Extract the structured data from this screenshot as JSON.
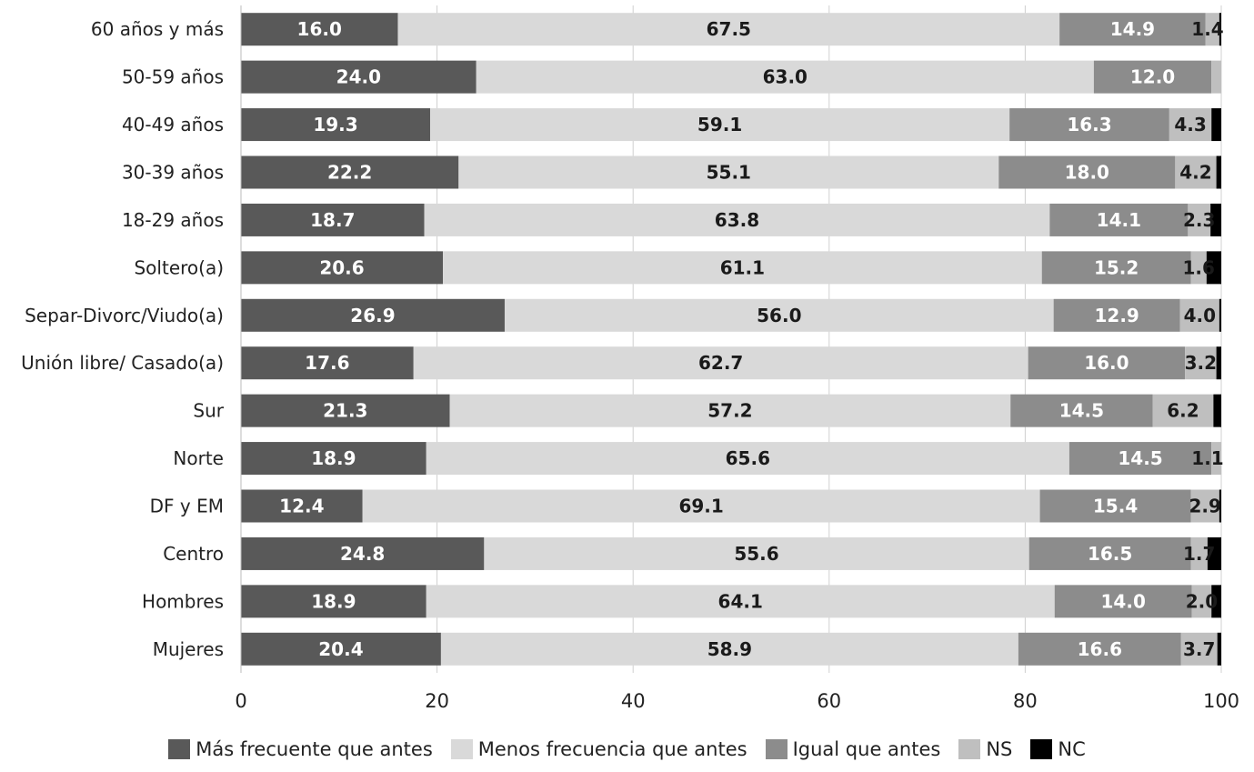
{
  "chart_data": {
    "type": "bar",
    "orientation": "horizontal",
    "stacked": true,
    "title": "",
    "xlabel": "",
    "ylabel": "",
    "xlim": [
      0,
      100
    ],
    "xticks": [
      "0",
      "20",
      "40",
      "60",
      "80",
      "100"
    ],
    "grid": true,
    "legend_position": "bottom",
    "categories": [
      "60 años y más",
      "50-59 años",
      "40-49 años",
      "30-39 años",
      "18-29 años",
      "Soltero(a)",
      "Separ-Divorc/Viudo(a)",
      "Unión libre/ Casado(a)",
      "Sur",
      "Norte",
      "DF y EM",
      "Centro",
      "Hombres",
      "Mujeres"
    ],
    "series": [
      {
        "name": "Más frecuente que antes",
        "color": "#595959",
        "label_color": "#ffffff",
        "values": [
          16.0,
          24.0,
          19.3,
          22.2,
          18.7,
          20.6,
          26.9,
          17.6,
          21.3,
          18.9,
          12.4,
          24.8,
          18.9,
          20.4
        ],
        "labels": [
          "16.0",
          "24.0",
          "19.3",
          "22.2",
          "18.7",
          "20.6",
          "26.9",
          "17.6",
          "21.3",
          "18.9",
          "12.4",
          "24.8",
          "18.9",
          "20.4"
        ]
      },
      {
        "name": "Menos frecuencia que antes",
        "color": "#d9d9d9",
        "label_color": "#1a1a1a",
        "values": [
          67.5,
          63.0,
          59.1,
          55.1,
          63.8,
          61.1,
          56.0,
          62.7,
          57.2,
          65.6,
          69.1,
          55.6,
          64.1,
          58.9
        ],
        "labels": [
          "67.5",
          "63.0",
          "59.1",
          "55.1",
          "63.8",
          "61.1",
          "56.0",
          "62.7",
          "57.2",
          "65.6",
          "69.1",
          "55.6",
          "64.1",
          "58.9"
        ]
      },
      {
        "name": "Igual que antes",
        "color": "#8c8c8c",
        "label_color": "#ffffff",
        "values": [
          14.9,
          12.0,
          16.3,
          18.0,
          14.1,
          15.2,
          12.9,
          16.0,
          14.5,
          14.5,
          15.4,
          16.5,
          14.0,
          16.6
        ],
        "labels": [
          "14.9",
          "12.0",
          "16.3",
          "18.0",
          "14.1",
          "15.2",
          "12.9",
          "16.0",
          "14.5",
          "14.5",
          "15.4",
          "16.5",
          "14.0",
          "16.6"
        ]
      },
      {
        "name": "NS",
        "color": "#bfbfbf",
        "label_color": "#1a1a1a",
        "values": [
          1.4,
          1.0,
          4.3,
          4.2,
          2.3,
          1.6,
          4.0,
          3.2,
          6.2,
          1.1,
          2.9,
          1.7,
          2.0,
          3.7
        ],
        "labels": [
          "1.4",
          "",
          "4.3",
          "4.2",
          "2.3",
          "1.6",
          "4.0",
          "3.2",
          "6.2",
          "1.1",
          "2.9",
          "1.7",
          "2.0",
          "3.7"
        ]
      },
      {
        "name": "NC",
        "color": "#000000",
        "label_color": "#ffffff",
        "values": [
          0.2,
          0.0,
          1.0,
          0.5,
          1.1,
          1.5,
          0.2,
          0.5,
          0.8,
          0.1,
          0.2,
          1.4,
          1.0,
          0.4
        ],
        "labels": [
          "",
          "",
          "",
          "",
          "",
          "",
          "",
          "",
          "",
          "",
          "",
          "",
          "",
          ""
        ]
      }
    ]
  }
}
